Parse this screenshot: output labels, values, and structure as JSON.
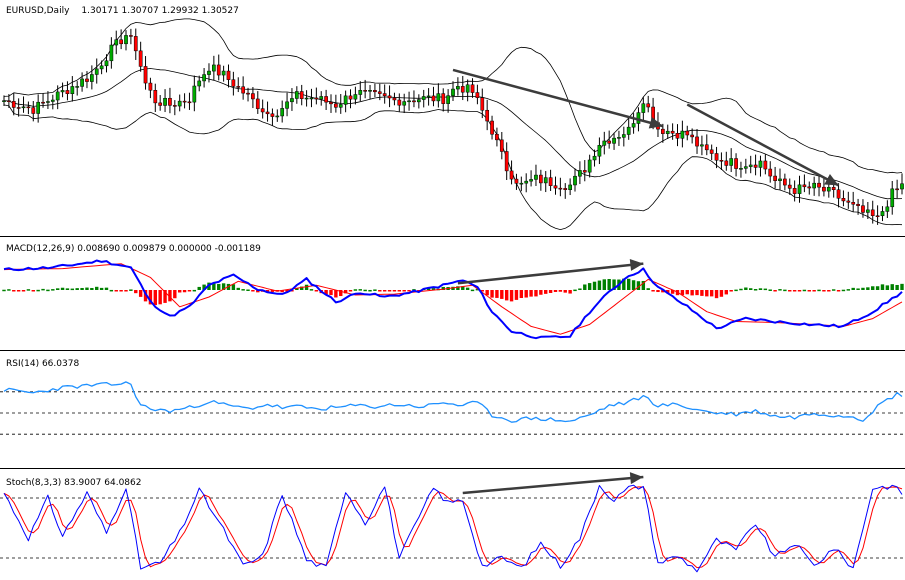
{
  "window": {
    "symbol_label": "EURUSD,Daily",
    "ohlc_label": "1.30171 1.30707 1.29932 1.30527"
  },
  "colors": {
    "background": "#ffffff",
    "candle_bull": "#00aa00",
    "candle_bear": "#ff0000",
    "bollinger": "#000000",
    "macd_line": "#0000ff",
    "signal_line": "#ff0000",
    "hist_up": "#008000",
    "hist_down": "#ff0000",
    "rsi_line": "#1e90ff",
    "stoch_main": "#0000ff",
    "stoch_signal": "#ff0000",
    "annotation_arrow": "#3c3c3c",
    "grid_dash": "#000000"
  },
  "chart_data": [
    {
      "type": "candlestick",
      "title": "EURUSD,Daily",
      "ohlc_label": "1.30171 1.30707 1.29932 1.30527",
      "indicators": [
        "Bollinger Bands"
      ],
      "close_path": [
        [
          0,
          0.62
        ],
        [
          6,
          0.58
        ],
        [
          12,
          0.66
        ],
        [
          18,
          0.74
        ],
        [
          22,
          0.86
        ],
        [
          25,
          0.93
        ],
        [
          27,
          0.87
        ],
        [
          29,
          0.7
        ],
        [
          31,
          0.62
        ],
        [
          34,
          0.6
        ],
        [
          38,
          0.63
        ],
        [
          40,
          0.72
        ],
        [
          42,
          0.78
        ],
        [
          45,
          0.74
        ],
        [
          48,
          0.68
        ],
        [
          51,
          0.62
        ],
        [
          54,
          0.56
        ],
        [
          56,
          0.57
        ],
        [
          60,
          0.64
        ],
        [
          64,
          0.63
        ],
        [
          68,
          0.6
        ],
        [
          72,
          0.66
        ],
        [
          76,
          0.64
        ],
        [
          80,
          0.62
        ],
        [
          85,
          0.63
        ],
        [
          90,
          0.63
        ],
        [
          93,
          0.69
        ],
        [
          96,
          0.66
        ],
        [
          100,
          0.48
        ],
        [
          103,
          0.3
        ],
        [
          106,
          0.22
        ],
        [
          109,
          0.25
        ],
        [
          113,
          0.23
        ],
        [
          116,
          0.22
        ],
        [
          119,
          0.3
        ],
        [
          122,
          0.42
        ],
        [
          125,
          0.45
        ],
        [
          128,
          0.48
        ],
        [
          131,
          0.63
        ],
        [
          134,
          0.49
        ],
        [
          137,
          0.47
        ],
        [
          140,
          0.46
        ],
        [
          143,
          0.39
        ],
        [
          146,
          0.35
        ],
        [
          150,
          0.32
        ],
        [
          155,
          0.33
        ],
        [
          158,
          0.24
        ],
        [
          162,
          0.2
        ],
        [
          166,
          0.21
        ],
        [
          170,
          0.18
        ],
        [
          173,
          0.13
        ],
        [
          176,
          0.09
        ],
        [
          179,
          0.06
        ],
        [
          182,
          0.18
        ],
        [
          184,
          0.22
        ]
      ],
      "annotations": [
        "downtrend arrow upper",
        "downtrend arrow lower"
      ]
    },
    {
      "type": "macd",
      "label": "MACD(12,26,9) 0.008690 0.009879 0.000000 -0.001189",
      "macd_path": [
        [
          0,
          0.78
        ],
        [
          10,
          0.8
        ],
        [
          20,
          0.87
        ],
        [
          26,
          0.8
        ],
        [
          30,
          0.45
        ],
        [
          34,
          0.3
        ],
        [
          38,
          0.4
        ],
        [
          42,
          0.62
        ],
        [
          47,
          0.72
        ],
        [
          52,
          0.58
        ],
        [
          57,
          0.52
        ],
        [
          62,
          0.68
        ],
        [
          68,
          0.45
        ],
        [
          73,
          0.55
        ],
        [
          78,
          0.5
        ],
        [
          84,
          0.55
        ],
        [
          90,
          0.62
        ],
        [
          94,
          0.67
        ],
        [
          97,
          0.6
        ],
        [
          100,
          0.35
        ],
        [
          104,
          0.15
        ],
        [
          110,
          0.08
        ],
        [
          116,
          0.1
        ],
        [
          120,
          0.35
        ],
        [
          124,
          0.55
        ],
        [
          128,
          0.72
        ],
        [
          131,
          0.78
        ],
        [
          134,
          0.6
        ],
        [
          140,
          0.4
        ],
        [
          146,
          0.18
        ],
        [
          152,
          0.28
        ],
        [
          158,
          0.25
        ],
        [
          165,
          0.22
        ],
        [
          172,
          0.2
        ],
        [
          178,
          0.35
        ],
        [
          184,
          0.55
        ]
      ],
      "signal_path": [
        [
          0,
          0.78
        ],
        [
          12,
          0.79
        ],
        [
          24,
          0.84
        ],
        [
          30,
          0.7
        ],
        [
          36,
          0.4
        ],
        [
          42,
          0.5
        ],
        [
          48,
          0.66
        ],
        [
          56,
          0.56
        ],
        [
          64,
          0.62
        ],
        [
          72,
          0.52
        ],
        [
          80,
          0.53
        ],
        [
          90,
          0.58
        ],
        [
          96,
          0.62
        ],
        [
          102,
          0.4
        ],
        [
          108,
          0.2
        ],
        [
          114,
          0.12
        ],
        [
          120,
          0.22
        ],
        [
          126,
          0.45
        ],
        [
          132,
          0.68
        ],
        [
          138,
          0.55
        ],
        [
          144,
          0.35
        ],
        [
          150,
          0.25
        ],
        [
          158,
          0.24
        ],
        [
          166,
          0.22
        ],
        [
          172,
          0.2
        ],
        [
          178,
          0.28
        ],
        [
          184,
          0.45
        ]
      ],
      "annotations": [
        "bullish divergence arrow"
      ]
    },
    {
      "type": "line",
      "label": "RSI(14) 66.0378",
      "levels": [
        70,
        50,
        30
      ],
      "ylim": [
        0,
        100
      ],
      "series_path": [
        [
          0,
          72
        ],
        [
          6,
          69
        ],
        [
          12,
          74
        ],
        [
          18,
          76
        ],
        [
          22,
          77
        ],
        [
          25,
          78
        ],
        [
          26,
          77
        ],
        [
          28,
          57
        ],
        [
          31,
          53
        ],
        [
          34,
          52
        ],
        [
          38,
          55
        ],
        [
          42,
          61
        ],
        [
          46,
          57
        ],
        [
          50,
          54
        ],
        [
          54,
          58
        ],
        [
          57,
          55
        ],
        [
          60,
          56
        ],
        [
          64,
          54
        ],
        [
          68,
          55
        ],
        [
          72,
          57
        ],
        [
          76,
          56
        ],
        [
          80,
          58
        ],
        [
          86,
          56
        ],
        [
          90,
          60
        ],
        [
          94,
          57
        ],
        [
          97,
          60
        ],
        [
          100,
          48
        ],
        [
          104,
          43
        ],
        [
          108,
          45
        ],
        [
          112,
          44
        ],
        [
          116,
          42
        ],
        [
          120,
          48
        ],
        [
          124,
          57
        ],
        [
          128,
          60
        ],
        [
          131,
          66
        ],
        [
          134,
          57
        ],
        [
          138,
          58
        ],
        [
          142,
          53
        ],
        [
          146,
          50
        ],
        [
          150,
          49
        ],
        [
          154,
          52
        ],
        [
          158,
          47
        ],
        [
          162,
          46
        ],
        [
          166,
          50
        ],
        [
          170,
          48
        ],
        [
          174,
          47
        ],
        [
          176,
          44
        ],
        [
          178,
          52
        ],
        [
          180,
          60
        ],
        [
          183,
          68
        ],
        [
          184,
          66
        ]
      ]
    },
    {
      "type": "line",
      "label": "Stoch(8,3,3) 83.9007 64.0862",
      "levels": [
        80,
        20
      ],
      "ylim": [
        0,
        100
      ],
      "series_path": [
        [
          0,
          85
        ],
        [
          5,
          40
        ],
        [
          9,
          80
        ],
        [
          12,
          42
        ],
        [
          17,
          85
        ],
        [
          21,
          45
        ],
        [
          25,
          92
        ],
        [
          28,
          10
        ],
        [
          32,
          15
        ],
        [
          36,
          45
        ],
        [
          40,
          88
        ],
        [
          45,
          48
        ],
        [
          49,
          12
        ],
        [
          53,
          22
        ],
        [
          57,
          84
        ],
        [
          62,
          18
        ],
        [
          66,
          10
        ],
        [
          70,
          88
        ],
        [
          74,
          55
        ],
        [
          78,
          92
        ],
        [
          81,
          20
        ],
        [
          85,
          60
        ],
        [
          88,
          90
        ],
        [
          91,
          75
        ],
        [
          94,
          78
        ],
        [
          98,
          12
        ],
        [
          102,
          20
        ],
        [
          106,
          10
        ],
        [
          110,
          35
        ],
        [
          114,
          12
        ],
        [
          118,
          40
        ],
        [
          122,
          93
        ],
        [
          125,
          78
        ],
        [
          128,
          90
        ],
        [
          131,
          92
        ],
        [
          134,
          15
        ],
        [
          138,
          22
        ],
        [
          142,
          8
        ],
        [
          146,
          38
        ],
        [
          150,
          28
        ],
        [
          154,
          55
        ],
        [
          158,
          20
        ],
        [
          162,
          35
        ],
        [
          166,
          12
        ],
        [
          170,
          30
        ],
        [
          174,
          10
        ],
        [
          178,
          90
        ],
        [
          182,
          92
        ],
        [
          184,
          85
        ]
      ],
      "annotations": [
        "stochastic divergence arrow"
      ]
    }
  ]
}
